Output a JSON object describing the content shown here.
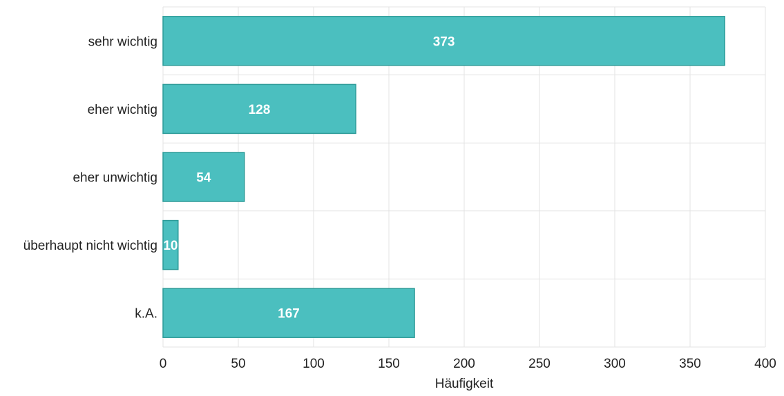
{
  "chart_data": {
    "type": "bar",
    "orientation": "horizontal",
    "categories": [
      "sehr wichtig",
      "eher wichtig",
      "eher unwichtig",
      "überhaupt nicht wichtig",
      "k.A."
    ],
    "values": [
      373,
      128,
      54,
      10,
      167
    ],
    "data_labels": [
      "373",
      "128",
      "54",
      "10",
      "167"
    ],
    "title": "",
    "xlabel": "Häufigkeit",
    "ylabel": "",
    "xlim": [
      0,
      400
    ],
    "xticks": [
      0,
      50,
      100,
      150,
      200,
      250,
      300,
      350,
      400
    ],
    "xtick_labels": [
      "0",
      "50",
      "100",
      "150",
      "200",
      "250",
      "300",
      "350",
      "400"
    ],
    "grid": true,
    "colors": {
      "bar_fill": "#4bbfbf",
      "bar_stroke": "#2e9c99",
      "grid": "#e3e3e3",
      "text": "#222222",
      "label_text": "#ffffff"
    }
  }
}
